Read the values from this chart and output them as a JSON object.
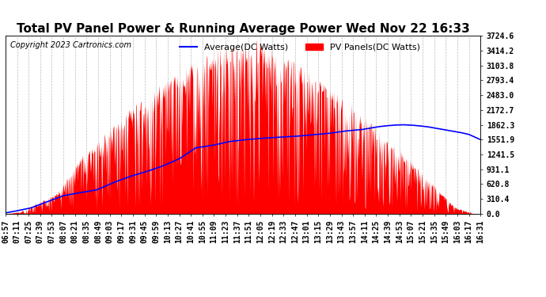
{
  "title": "Total PV Panel Power & Running Average Power Wed Nov 22 16:33",
  "copyright": "Copyright 2023 Cartronics.com",
  "legend_avg": "Average(DC Watts)",
  "legend_pv": "PV Panels(DC Watts)",
  "ylabel_vals": [
    0.0,
    310.4,
    620.8,
    931.1,
    1241.5,
    1551.9,
    1862.3,
    2172.7,
    2483.0,
    2793.4,
    3103.8,
    3414.2,
    3724.6
  ],
  "ymax": 3724.6,
  "ymin": 0.0,
  "bg_color": "#ffffff",
  "grid_color": "#bbbbbb",
  "pv_color": "#ff0000",
  "avg_color": "#0000ff",
  "title_fontsize": 11,
  "copyright_fontsize": 7,
  "legend_fontsize": 8,
  "tick_fontsize": 7,
  "x_labels": [
    "06:57",
    "07:11",
    "07:25",
    "07:39",
    "07:53",
    "08:07",
    "08:21",
    "08:35",
    "08:49",
    "09:03",
    "09:17",
    "09:31",
    "09:45",
    "09:59",
    "10:13",
    "10:27",
    "10:41",
    "10:55",
    "11:09",
    "11:23",
    "11:37",
    "11:51",
    "12:05",
    "12:19",
    "12:33",
    "12:47",
    "13:01",
    "13:15",
    "13:29",
    "13:43",
    "13:57",
    "14:11",
    "14:25",
    "14:39",
    "14:53",
    "15:07",
    "15:21",
    "15:35",
    "15:49",
    "16:03",
    "16:17",
    "16:31"
  ],
  "avg_keypoints_x": [
    417,
    427,
    447,
    467,
    487,
    507,
    527,
    547,
    567,
    587,
    607,
    627,
    647,
    667,
    687,
    707,
    727,
    747,
    767,
    787,
    807,
    827,
    847,
    857,
    867,
    877,
    887,
    897,
    907,
    917,
    927,
    937,
    947,
    957,
    967,
    977,
    991
  ],
  "avg_keypoints_y": [
    20,
    50,
    120,
    250,
    380,
    440,
    500,
    650,
    780,
    880,
    1000,
    1150,
    1380,
    1430,
    1510,
    1550,
    1580,
    1600,
    1620,
    1650,
    1680,
    1730,
    1760,
    1790,
    1820,
    1840,
    1855,
    1862,
    1855,
    1840,
    1820,
    1790,
    1760,
    1730,
    1700,
    1660,
    1551
  ]
}
